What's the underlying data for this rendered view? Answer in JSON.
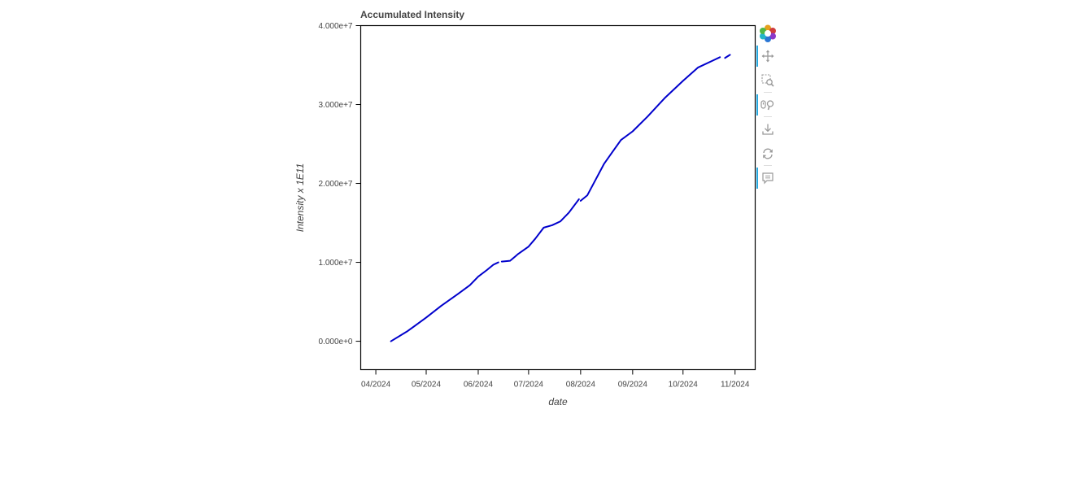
{
  "chart_data": {
    "type": "line",
    "title": "Accumulated Intensity",
    "xlabel": "date",
    "ylabel": "Intensity x 1E11",
    "x_type": "datetime",
    "xlim": [
      "2024-03-23",
      "2024-11-13"
    ],
    "ylim": [
      -3600000,
      40000000
    ],
    "x_ticks": [
      {
        "date": "2024-04-01",
        "label": "04/2024"
      },
      {
        "date": "2024-05-01",
        "label": "05/2024"
      },
      {
        "date": "2024-06-01",
        "label": "06/2024"
      },
      {
        "date": "2024-07-01",
        "label": "07/2024"
      },
      {
        "date": "2024-08-01",
        "label": "08/2024"
      },
      {
        "date": "2024-09-01",
        "label": "09/2024"
      },
      {
        "date": "2024-10-01",
        "label": "10/2024"
      },
      {
        "date": "2024-11-01",
        "label": "11/2024"
      }
    ],
    "y_ticks": [
      {
        "value": 0,
        "label": "0.000e+0"
      },
      {
        "value": 10000000,
        "label": "1.000e+7"
      },
      {
        "value": 20000000,
        "label": "2.000e+7"
      },
      {
        "value": 30000000,
        "label": "3.000e+7"
      },
      {
        "value": 40000000,
        "label": "4.000e+7"
      }
    ],
    "grid": false,
    "series": [
      {
        "color": "#0000cc",
        "segments": [
          [
            {
              "x": "2024-04-10",
              "y": 0
            },
            {
              "x": "2024-04-20",
              "y": 1300000
            },
            {
              "x": "2024-05-01",
              "y": 3000000
            },
            {
              "x": "2024-05-10",
              "y": 4500000
            },
            {
              "x": "2024-05-20",
              "y": 6000000
            },
            {
              "x": "2024-05-27",
              "y": 7100000
            },
            {
              "x": "2024-06-01",
              "y": 8200000
            },
            {
              "x": "2024-06-06",
              "y": 9000000
            },
            {
              "x": "2024-06-10",
              "y": 9700000
            },
            {
              "x": "2024-06-13",
              "y": 10000000
            }
          ],
          [
            {
              "x": "2024-06-15",
              "y": 10100000
            },
            {
              "x": "2024-06-20",
              "y": 10200000
            },
            {
              "x": "2024-06-25",
              "y": 11100000
            },
            {
              "x": "2024-07-01",
              "y": 12000000
            },
            {
              "x": "2024-07-05",
              "y": 13000000
            },
            {
              "x": "2024-07-10",
              "y": 14400000
            },
            {
              "x": "2024-07-15",
              "y": 14700000
            },
            {
              "x": "2024-07-20",
              "y": 15200000
            },
            {
              "x": "2024-07-25",
              "y": 16300000
            },
            {
              "x": "2024-07-31",
              "y": 18000000
            }
          ],
          [
            {
              "x": "2024-08-01",
              "y": 17800000
            },
            {
              "x": "2024-08-05",
              "y": 18500000
            },
            {
              "x": "2024-08-10",
              "y": 20500000
            },
            {
              "x": "2024-08-15",
              "y": 22500000
            },
            {
              "x": "2024-08-20",
              "y": 24000000
            },
            {
              "x": "2024-08-25",
              "y": 25500000
            },
            {
              "x": "2024-09-01",
              "y": 26600000
            },
            {
              "x": "2024-09-10",
              "y": 28500000
            },
            {
              "x": "2024-09-20",
              "y": 30800000
            },
            {
              "x": "2024-10-01",
              "y": 33000000
            },
            {
              "x": "2024-10-10",
              "y": 34700000
            },
            {
              "x": "2024-10-20",
              "y": 35700000
            },
            {
              "x": "2024-10-23",
              "y": 36000000
            }
          ],
          [
            {
              "x": "2024-10-26",
              "y": 35900000
            },
            {
              "x": "2024-10-29",
              "y": 36300000
            }
          ]
        ]
      }
    ]
  },
  "toolbar": {
    "tools": [
      {
        "name": "bokeh-logo",
        "icon": "bokeh-logo-icon",
        "active": false
      },
      {
        "name": "pan-tool",
        "icon": "pan-icon",
        "active": true
      },
      {
        "name": "box-zoom-tool",
        "icon": "box-zoom-icon",
        "active": false
      },
      {
        "name": "wheel-zoom-tool",
        "icon": "wheel-zoom-icon",
        "active": true
      },
      {
        "name": "save-tool",
        "icon": "save-icon",
        "active": false
      },
      {
        "name": "reset-tool",
        "icon": "reset-icon",
        "active": false
      },
      {
        "name": "hover-tool",
        "icon": "hover-icon",
        "active": true
      }
    ]
  }
}
